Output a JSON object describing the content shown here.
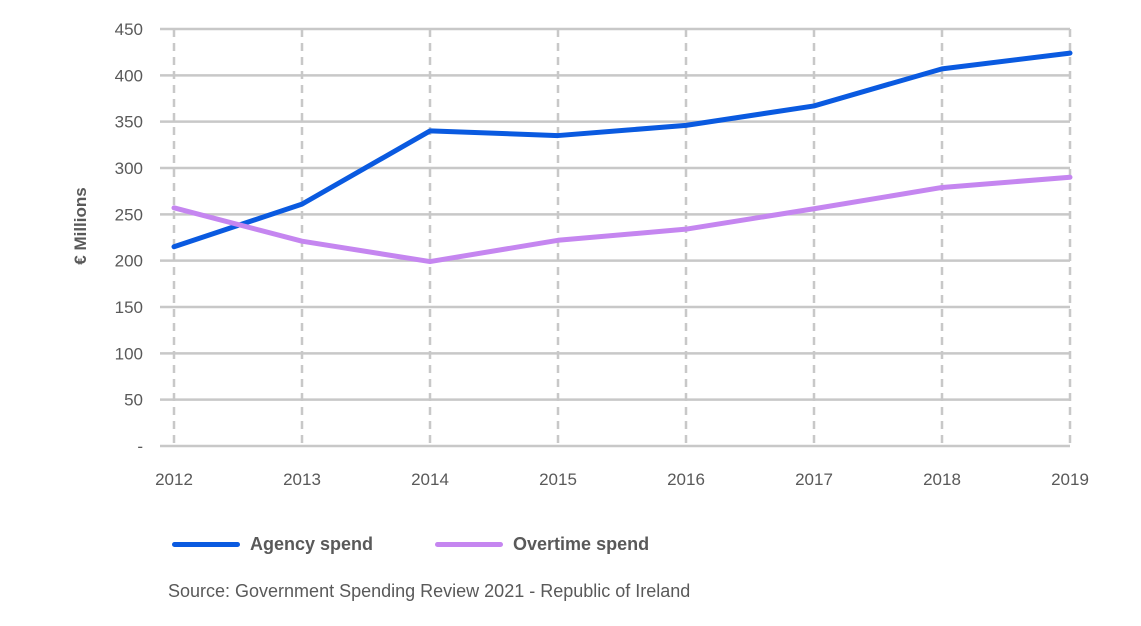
{
  "chart_data": {
    "type": "line",
    "x": [
      "2012",
      "2013",
      "2014",
      "2015",
      "2016",
      "2017",
      "2018",
      "2019"
    ],
    "series": [
      {
        "name": "Agency spend",
        "values": [
          215,
          261,
          340,
          335,
          346,
          367,
          407,
          424
        ],
        "color": "#0a5ae0"
      },
      {
        "name": "Overtime spend",
        "values": [
          257,
          221,
          199,
          222,
          234,
          256,
          279,
          290
        ],
        "color": "#c586f0"
      }
    ],
    "title": "",
    "xlabel": "",
    "ylabel": "€ Millions",
    "ylim": [
      0,
      450
    ],
    "yticks": [
      0,
      50,
      100,
      150,
      200,
      250,
      300,
      350,
      400,
      450
    ],
    "ytick_labels": [
      "-",
      "50",
      "100",
      "150",
      "200",
      "250",
      "300",
      "350",
      "400",
      "450"
    ],
    "grid": "horizontal solid, vertical dashed",
    "legend_position": "bottom-left"
  },
  "source": "Source: Government Spending Review 2021 - Republic of Ireland"
}
